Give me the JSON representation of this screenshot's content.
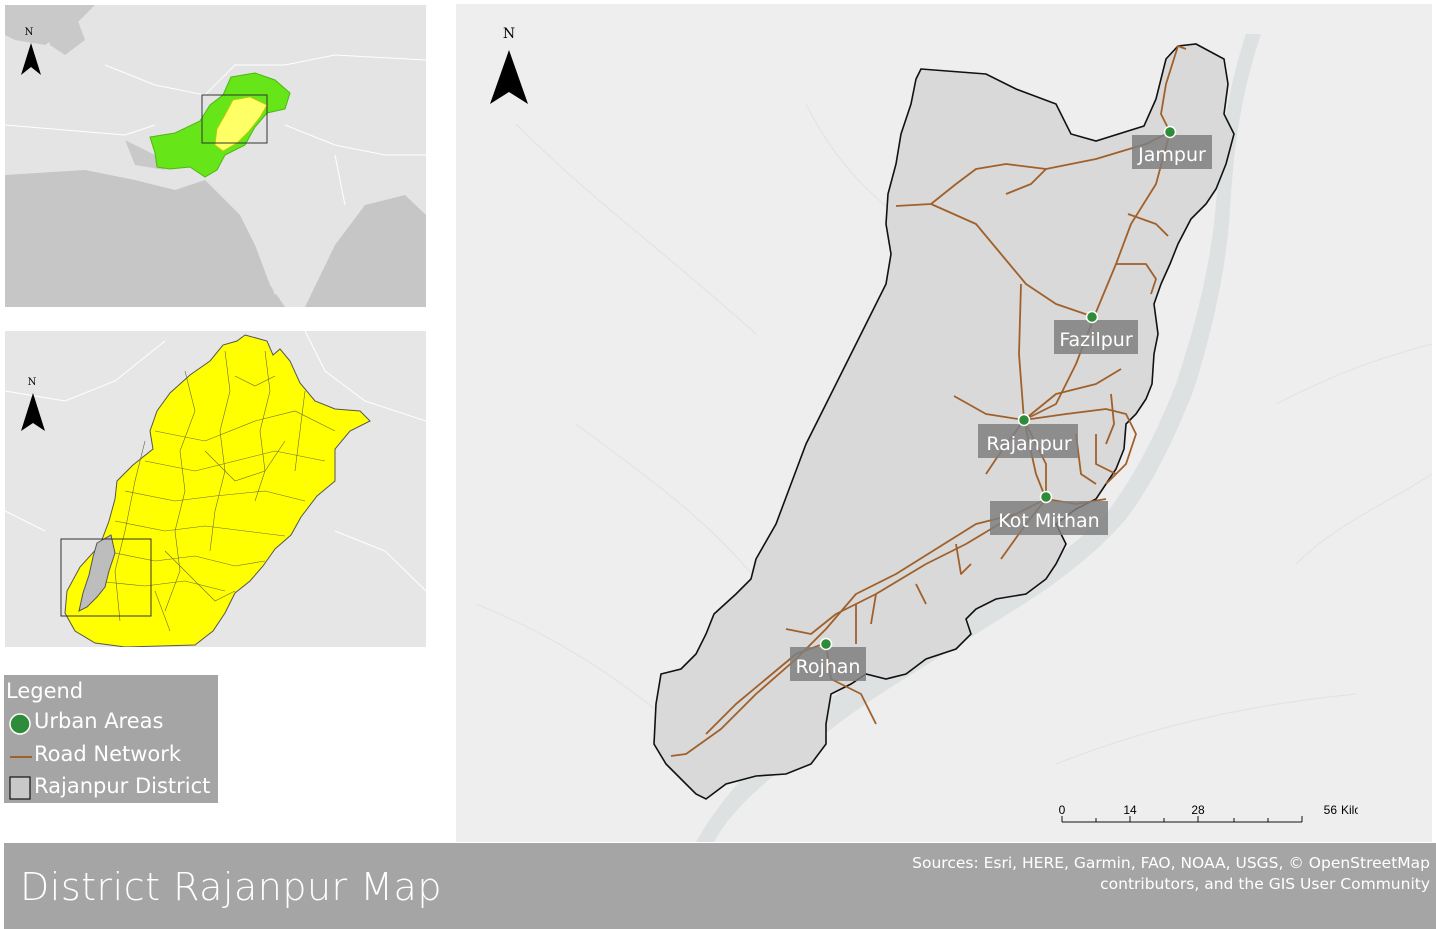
{
  "title": "District Rajanpur Map",
  "attribution": {
    "line1": "Sources: Esri, HERE, Garmin, FAO, NOAA, USGS, © OpenStreetMap",
    "line2": "contributors, and the GIS User Community"
  },
  "north_arrow": {
    "label": "N"
  },
  "legend": {
    "title": "Legend",
    "items": [
      {
        "label": "Urban Areas",
        "symbol": "green-circle",
        "color": "#2e8b3a"
      },
      {
        "label": "Road Network",
        "symbol": "brown-line",
        "color": "#a0602a"
      },
      {
        "label": "Rajanpur District",
        "symbol": "grey-square",
        "color": "#c8c8c8"
      }
    ]
  },
  "towns": [
    {
      "name": "Jampur"
    },
    {
      "name": "Fazilpur"
    },
    {
      "name": "Rajanpur"
    },
    {
      "name": "Kot Mithan"
    },
    {
      "name": "Rojhan"
    }
  ],
  "scale_bar": {
    "ticks": [
      "0",
      "14",
      "28",
      "56"
    ],
    "unit": "Kilometers"
  },
  "colors": {
    "country_highlight": "#66e619",
    "province_fill": "#ffff00",
    "district_fill": "#bdbdbd",
    "road": "#a0602a",
    "urban": "#2e8b3a",
    "water": "#cfd6d6"
  }
}
